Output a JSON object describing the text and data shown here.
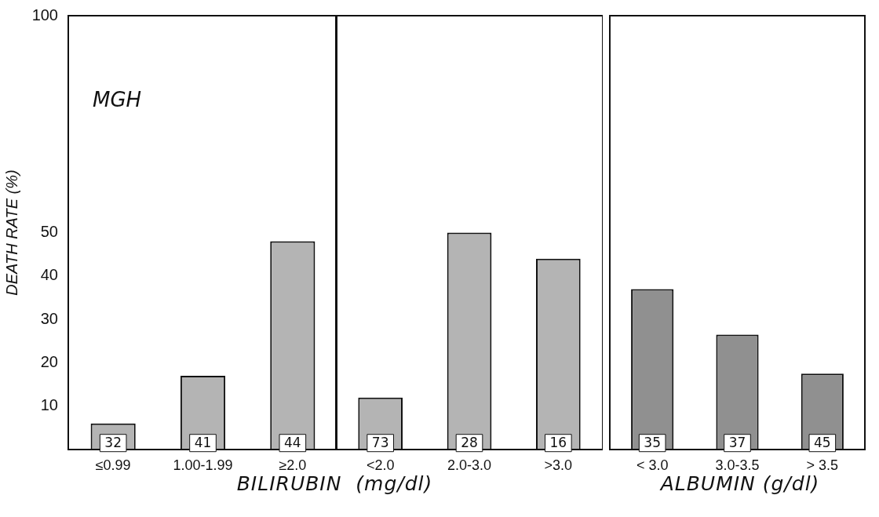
{
  "chart_data": [
    {
      "type": "bar",
      "ylabel": "DEATH RATE (%)",
      "xlabel": "BILIRUBIN  (mg/dl)",
      "categories": [
        "≤0.99",
        "1.00-1.99",
        "≥2.0"
      ],
      "values": [
        6,
        17,
        48
      ],
      "color": "#b4b4b4",
      "ylim": [
        0,
        100
      ],
      "yticks": [
        10,
        20,
        30,
        40,
        50,
        100
      ],
      "grid": false,
      "annotations": [
        "MGH",
        {
          "text": "32",
          "x": "≤0.99",
          "y": 1.5
        },
        {
          "text": "41",
          "x": "1.00-1.99",
          "y": 1.5
        },
        {
          "text": "44",
          "x": "≥2.0",
          "y": 1.5
        }
      ]
    },
    {
      "type": "bar",
      "categories": [
        "<2.0",
        "2.0-3.0",
        ">3.0"
      ],
      "values": [
        12,
        50,
        44
      ],
      "color": "#b4b4b4",
      "ylim": [
        0,
        100
      ],
      "tick_labels": "x",
      "grid": false,
      "annotations": [
        {
          "text": "73",
          "x": "<2.0",
          "y": 1.5
        },
        {
          "text": "28",
          "x": "2.0-3.0",
          "y": 1.5
        },
        {
          "text": "16",
          "x": ">3.0",
          "y": 1.5
        }
      ]
    },
    {
      "type": "bar",
      "xlabel": "ALBUMIN (g/dl)",
      "categories": [
        "< 3.0",
        "3.0-3.5",
        "> 3.5"
      ],
      "values": [
        37,
        26.5,
        17.5
      ],
      "color": "#909090",
      "ylim": [
        0,
        100
      ],
      "tick_labels": "x",
      "grid": false,
      "annotations": [
        {
          "text": "35",
          "x": "< 3.0",
          "y": 1.5
        },
        {
          "text": "37",
          "x": "3.0-3.5",
          "y": 1.5
        },
        {
          "text": "45",
          "x": "> 3.5",
          "y": 1.5
        }
      ]
    }
  ]
}
